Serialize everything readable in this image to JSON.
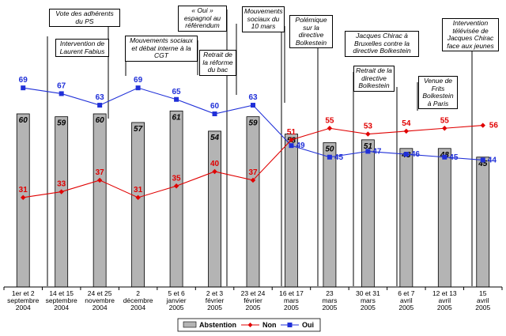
{
  "chart_data": {
    "type": "bar",
    "categories": [
      "1er et 2\nseptembre\n2004",
      "14 et 15\nseptembre\n2004",
      "24 et 25\nnovembre\n2004",
      "2\ndécembre\n2004",
      "5 et 6\njanvier\n2005",
      "2 et 3\nfévrier\n2005",
      "23 et 24\nfévrier\n2005",
      "16 et 17\nmars\n2005",
      "23\nmars\n2005",
      "30 et 31\nmars\n2005",
      "6 et 7\navril\n2005",
      "12 et 13\navril\n2005",
      "15\navril\n2005"
    ],
    "series": [
      {
        "name": "Abstention",
        "type": "bar",
        "color": "#b4b4b4",
        "values": [
          60,
          59,
          60,
          57,
          61,
          54,
          59,
          53,
          50,
          51,
          48,
          48,
          45
        ]
      },
      {
        "name": "Non",
        "type": "line",
        "color": "#e00000",
        "marker": "diamond",
        "values": [
          31,
          33,
          37,
          31,
          35,
          40,
          37,
          51,
          55,
          53,
          54,
          55,
          56
        ]
      },
      {
        "name": "Oui",
        "type": "line",
        "color": "#2030d8",
        "marker": "square",
        "values": [
          69,
          67,
          63,
          69,
          65,
          60,
          63,
          49,
          45,
          47,
          46,
          45,
          44
        ]
      }
    ],
    "ylim": [
      0,
      80
    ],
    "grid": false,
    "legend": "bottom",
    "annotations": [
      {
        "text": "Vote des adhérents du PS"
      },
      {
        "text": "Intervention de Laurent Fabius"
      },
      {
        "text": "Mouvements sociaux et débat interne à la CGT"
      },
      {
        "text": "« Oui » espagnol au référendum"
      },
      {
        "text": "Retrait de la réforme du bac"
      },
      {
        "text": "Mouvements sociaux du 10 mars"
      },
      {
        "text": "Polémique sur la directive Bolkestein"
      },
      {
        "text": "Jacques Chirac à Bruxelles contre la directive Bolkestein"
      },
      {
        "text": "Retrait de la directive Bolkestein"
      },
      {
        "text": "Venue de Frits Bolkestein à Paris"
      },
      {
        "text": "Intervention télévisée de Jacques Chirac face aux jeunes"
      }
    ]
  }
}
